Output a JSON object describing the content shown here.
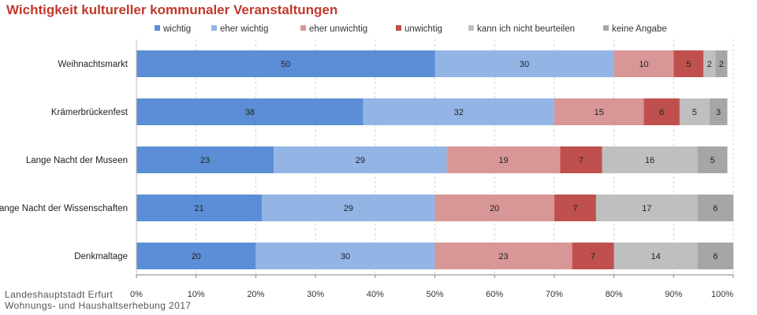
{
  "page": {
    "title": "Wichtigkeit kultureller kommunaler Veranstaltungen",
    "source_line1": "Landeshauptstadt Erfurt",
    "source_line2": "Wohnungs- und Haushaltserhebung 2017"
  },
  "chart_data": {
    "type": "bar",
    "orientation": "horizontal",
    "stacked": true,
    "title": "Wichtigkeit kultureller kommunaler Veranstaltungen",
    "categories": [
      "Weihnachtsmarkt",
      "Krämerbrückenfest",
      "Lange Nacht der Museen",
      "Lange Nacht der Wissenschaften",
      "Denkmaltage"
    ],
    "series": [
      {
        "name": "wichtig",
        "color": "#5b8ed6",
        "values": [
          50,
          38,
          23,
          21,
          20
        ]
      },
      {
        "name": "eher wichtig",
        "color": "#92b5e6",
        "values": [
          30,
          32,
          29,
          29,
          30
        ]
      },
      {
        "name": "eher unwichtig",
        "color": "#d99696",
        "values": [
          10,
          15,
          19,
          20,
          23
        ]
      },
      {
        "name": "unwichtig",
        "color": "#c0504d",
        "values": [
          5,
          6,
          7,
          7,
          7
        ]
      },
      {
        "name": "kann ich nicht beurteilen",
        "color": "#bfbfbf",
        "values": [
          2,
          5,
          16,
          17,
          14
        ]
      },
      {
        "name": "keine Angabe",
        "color": "#a6a6a6",
        "values": [
          2,
          3,
          5,
          6,
          6
        ]
      }
    ],
    "xlim": [
      0,
      100
    ],
    "x_ticks": [
      "0%",
      "10%",
      "20%",
      "30%",
      "40%",
      "50%",
      "60%",
      "70%",
      "80%",
      "90%",
      "100%"
    ],
    "grid": true,
    "legend_position": "top"
  }
}
